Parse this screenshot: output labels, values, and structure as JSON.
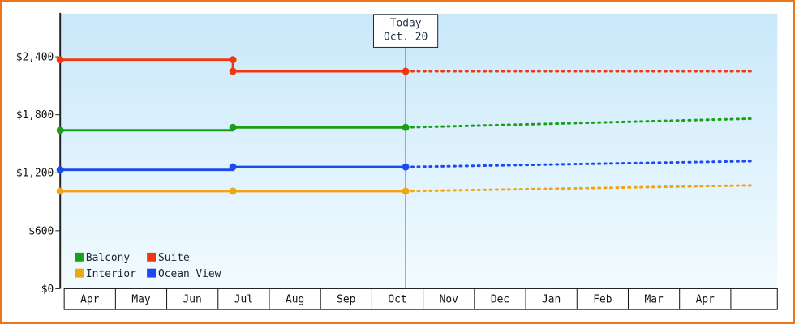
{
  "frame": {
    "border_color": "#ee7418",
    "background_color": "#ffffff",
    "plot_gradient_top": "#c9e8fa",
    "plot_gradient_bottom": "#f2fbff"
  },
  "chart_data": {
    "type": "line",
    "title": "",
    "x_axis": {
      "unit": "month",
      "labels": [
        "Apr",
        "May",
        "Jun",
        "Jul",
        "Aug",
        "Sep",
        "Oct",
        "Nov",
        "Dec",
        "Jan",
        "Feb",
        "Mar",
        "Apr"
      ]
    },
    "y_axis": {
      "unit": "USD",
      "ticks": [
        {
          "label": "$0",
          "value": 0
        },
        {
          "label": "$600",
          "value": 600
        },
        {
          "label": "$1,200",
          "value": 1200
        },
        {
          "label": "$1,800",
          "value": 1800
        },
        {
          "label": "$2,400",
          "value": 2400
        }
      ],
      "range": [
        0,
        2840
      ]
    },
    "today_marker": {
      "line1": "Today",
      "line2": "Oct. 20",
      "month_index": 6
    },
    "grid": false,
    "projection_style": "dotted",
    "series": [
      {
        "name": "Balcony",
        "color": "#18a018",
        "solid_points": [
          [
            0,
            1640
          ],
          [
            3,
            1640
          ],
          [
            3,
            1670
          ],
          [
            6,
            1670
          ]
        ],
        "projection_points": [
          [
            6,
            1670
          ],
          [
            12,
            1760
          ]
        ],
        "marker_points": [
          [
            0,
            1640
          ],
          [
            3,
            1670
          ],
          [
            6,
            1670
          ]
        ]
      },
      {
        "name": "Suite",
        "color": "#f03810",
        "solid_points": [
          [
            0,
            2370
          ],
          [
            3,
            2370
          ],
          [
            3,
            2250
          ],
          [
            6,
            2250
          ]
        ],
        "projection_points": [
          [
            6,
            2250
          ],
          [
            12,
            2250
          ]
        ],
        "marker_points": [
          [
            0,
            2370
          ],
          [
            3,
            2370
          ],
          [
            3,
            2250
          ],
          [
            6,
            2250
          ]
        ]
      },
      {
        "name": "Interior",
        "color": "#f0a513",
        "solid_points": [
          [
            0,
            1010
          ],
          [
            3,
            1010
          ],
          [
            6,
            1010
          ]
        ],
        "projection_points": [
          [
            6,
            1010
          ],
          [
            12,
            1070
          ]
        ],
        "marker_points": [
          [
            0,
            1010
          ],
          [
            3,
            1010
          ],
          [
            6,
            1010
          ]
        ]
      },
      {
        "name": "Ocean View",
        "color": "#1c49f0",
        "solid_points": [
          [
            0,
            1230
          ],
          [
            3,
            1230
          ],
          [
            3,
            1260
          ],
          [
            6,
            1260
          ]
        ],
        "projection_points": [
          [
            6,
            1260
          ],
          [
            12,
            1320
          ]
        ],
        "marker_points": [
          [
            0,
            1230
          ],
          [
            3,
            1260
          ],
          [
            6,
            1260
          ]
        ]
      }
    ],
    "legend": {
      "position": "bottom-left-inside",
      "rows": [
        [
          "Balcony",
          "Suite"
        ],
        [
          "Interior",
          "Ocean View"
        ]
      ]
    }
  }
}
